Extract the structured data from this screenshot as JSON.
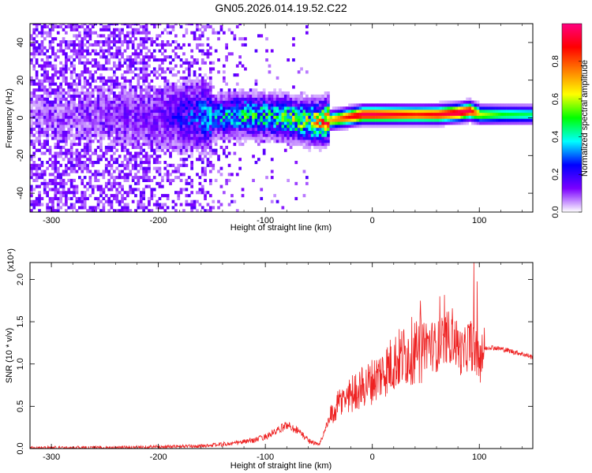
{
  "title": "GN05.2026.014.19.52.C22",
  "chart_data": [
    {
      "type": "heatmap",
      "xlabel": "Height of straight line (km)",
      "ylabel": "Frequency (Hz)",
      "xlim": [
        -320,
        150
      ],
      "ylim": [
        -50,
        50
      ],
      "x_ticks": [
        -300,
        -200,
        -100,
        0,
        100
      ],
      "y_ticks": [
        -40,
        -20,
        0,
        20,
        40
      ],
      "colorbar": {
        "label": "Normalized spectral amplitude",
        "range": [
          0,
          1
        ],
        "ticks": [
          "0.0",
          "0.2",
          "0.4",
          "0.6",
          "0.8"
        ],
        "colormap": [
          "#ffffff",
          "#7b00ff",
          "#0000ff",
          "#00ffff",
          "#00ff00",
          "#ffff00",
          "#ff7f00",
          "#ff0000",
          "#ff0080"
        ]
      },
      "ridge": {
        "x": [
          -320,
          -250,
          -200,
          -150,
          -120,
          -100,
          -80,
          -60,
          -50,
          -40,
          -30,
          -20,
          -10,
          0,
          20,
          40,
          60,
          80,
          90,
          100,
          120,
          150
        ],
        "freq": [
          0,
          1,
          0,
          0,
          1,
          0,
          -1,
          -3,
          -3,
          -2,
          -1,
          0,
          1,
          1,
          1,
          1,
          1,
          2,
          3,
          1,
          1,
          1
        ],
        "peak_amplitude": [
          0.05,
          0.08,
          0.12,
          0.3,
          0.4,
          0.4,
          0.45,
          0.5,
          0.6,
          0.7,
          0.8,
          0.9,
          0.95,
          0.95,
          0.9,
          0.85,
          0.9,
          0.98,
          0.95,
          0.6,
          0.5,
          0.45
        ]
      }
    },
    {
      "type": "line",
      "xlabel": "Height of straight line (km)",
      "ylabel": "SNR (10 * v/v)",
      "y_multiplier": "(x10⁴)",
      "xlim": [
        -320,
        150
      ],
      "ylim": [
        0,
        2.2
      ],
      "x_ticks": [
        -300,
        -200,
        -100,
        0,
        100
      ],
      "y_ticks": [
        "0.0",
        "0.5",
        "1.0",
        "1.5",
        "2.0"
      ],
      "color": "#ee2222",
      "series": [
        {
          "x": [
            -320,
            -250,
            -200,
            -160,
            -130,
            -110,
            -100,
            -90,
            -80,
            -70,
            -60,
            -50,
            -40,
            -30,
            -20,
            -10,
            0,
            10,
            20,
            30,
            40,
            45,
            50,
            60,
            70,
            75,
            80,
            85,
            90,
            95,
            100,
            105,
            110,
            120,
            130,
            140,
            150
          ],
          "values": [
            0.01,
            0.01,
            0.02,
            0.03,
            0.06,
            0.1,
            0.14,
            0.2,
            0.28,
            0.22,
            0.1,
            0.04,
            0.35,
            0.55,
            0.65,
            0.72,
            0.8,
            0.9,
            1.02,
            1.1,
            1.18,
            1.3,
            1.25,
            1.2,
            1.3,
            1.35,
            1.2,
            1.1,
            1.25,
            1.2,
            1.0,
            1.18,
            1.2,
            1.18,
            1.15,
            1.12,
            1.08
          ]
        }
      ]
    }
  ]
}
